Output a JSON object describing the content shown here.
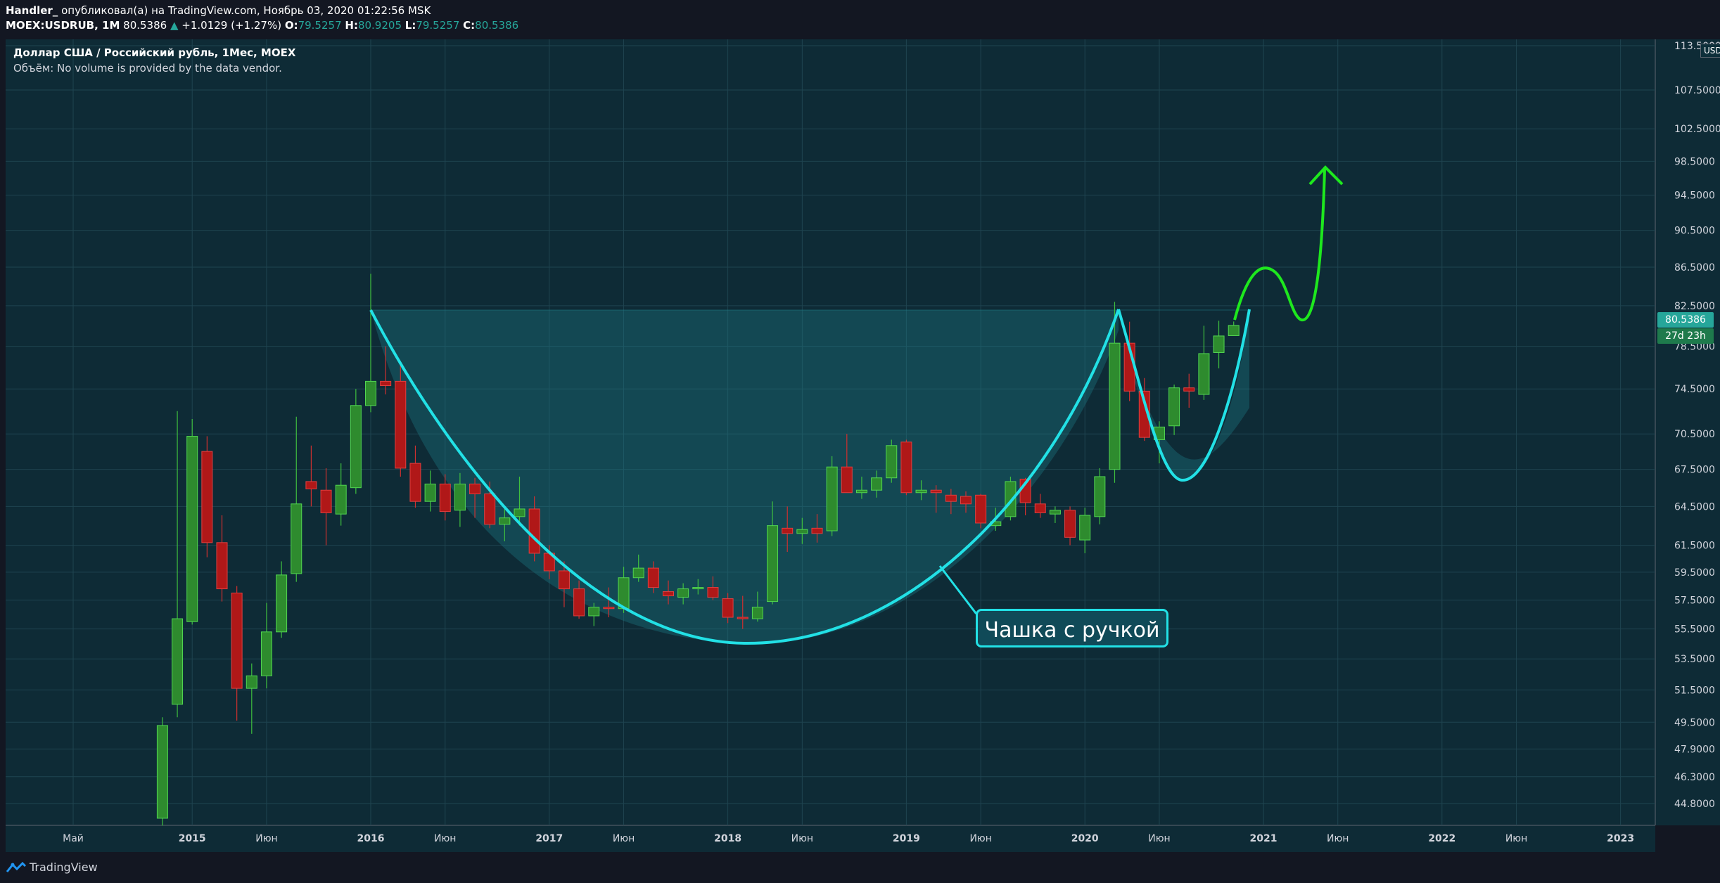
{
  "header": {
    "author": "Handler_",
    "published_text": "опубликовал(а) на TradingView.com, Ноябрь 03, 2020 01:22:56 MSK",
    "symbol": "MOEX:USDRUB, 1M",
    "last": "80.5386",
    "change": "+1.0129 (+1.27%)",
    "open_label": "O:",
    "open": "79.5257",
    "high_label": "H:",
    "high": "80.9205",
    "low_label": "L:",
    "low": "79.5257",
    "close_label": "C:",
    "close": "80.5386"
  },
  "legend": {
    "title": "Доллар США / Российский рубль, 1Мес, MOEX",
    "volume_note": "Объём: No volume is provided by the data vendor."
  },
  "price_axis": {
    "currency": "USD",
    "current_price": "80.5386",
    "countdown": "27d 23h"
  },
  "annotation": "Чашка с ручкой",
  "footer": {
    "brand": "TradingView"
  },
  "colors": {
    "background": "#0e2b36",
    "up_candle": "#2e8b2e",
    "down_candle": "#b01818",
    "cup_line": "#22e1e6",
    "projection": "#1ee81e"
  },
  "chart_data": {
    "type": "candlestick",
    "title": "Доллар США / Российский рубль, 1Мес, MOEX",
    "y_scale": "log",
    "ylim": [
      43.6,
      113.5
    ],
    "y_ticks": [
      "113.5000",
      "107.5000",
      "102.5000",
      "98.5000",
      "94.5000",
      "90.5000",
      "86.5000",
      "82.5000",
      "78.5000",
      "74.5000",
      "70.5000",
      "67.5000",
      "64.5000",
      "61.5000",
      "59.5000",
      "57.5000",
      "55.5000",
      "53.5000",
      "51.5000",
      "49.5000",
      "47.9000",
      "46.3000",
      "44.8000"
    ],
    "x_ticks": [
      {
        "label": "Май",
        "date": "2014-05"
      },
      {
        "label": "2015",
        "date": "2015-01"
      },
      {
        "label": "Июн",
        "date": "2015-06"
      },
      {
        "label": "2016",
        "date": "2016-01"
      },
      {
        "label": "Июн",
        "date": "2016-06"
      },
      {
        "label": "2017",
        "date": "2017-01"
      },
      {
        "label": "Июн",
        "date": "2017-06"
      },
      {
        "label": "2018",
        "date": "2018-01"
      },
      {
        "label": "Июн",
        "date": "2018-06"
      },
      {
        "label": "2019",
        "date": "2019-01"
      },
      {
        "label": "Июн",
        "date": "2019-06"
      },
      {
        "label": "2020",
        "date": "2020-01"
      },
      {
        "label": "Июн",
        "date": "2020-06"
      },
      {
        "label": "2021",
        "date": "2021-01"
      },
      {
        "label": "Июн",
        "date": "2021-06"
      },
      {
        "label": "2022",
        "date": "2022-01"
      },
      {
        "label": "Июн",
        "date": "2022-06"
      },
      {
        "label": "2023",
        "date": "2023-01"
      }
    ],
    "candles": [
      {
        "date": "2014-11",
        "o": 44.0,
        "h": 49.8,
        "l": 43.6,
        "c": 49.3
      },
      {
        "date": "2014-12",
        "o": 50.6,
        "h": 72.5,
        "l": 49.8,
        "c": 56.2
      },
      {
        "date": "2015-01",
        "o": 56.0,
        "h": 71.8,
        "l": 55.8,
        "c": 70.3
      },
      {
        "date": "2015-02",
        "o": 69.0,
        "h": 70.3,
        "l": 60.6,
        "c": 61.7
      },
      {
        "date": "2015-03",
        "o": 61.7,
        "h": 63.8,
        "l": 57.4,
        "c": 58.3
      },
      {
        "date": "2015-04",
        "o": 58.0,
        "h": 58.5,
        "l": 49.6,
        "c": 51.6
      },
      {
        "date": "2015-05",
        "o": 51.6,
        "h": 53.2,
        "l": 48.8,
        "c": 52.4
      },
      {
        "date": "2015-06",
        "o": 52.4,
        "h": 57.3,
        "l": 51.6,
        "c": 55.3
      },
      {
        "date": "2015-07",
        "o": 55.3,
        "h": 60.3,
        "l": 54.9,
        "c": 59.3
      },
      {
        "date": "2015-08",
        "o": 59.4,
        "h": 72.0,
        "l": 58.8,
        "c": 64.7
      },
      {
        "date": "2015-09",
        "o": 66.5,
        "h": 69.5,
        "l": 64.5,
        "c": 65.9
      },
      {
        "date": "2015-10",
        "o": 65.8,
        "h": 67.6,
        "l": 61.5,
        "c": 64.0
      },
      {
        "date": "2015-11",
        "o": 63.9,
        "h": 68.0,
        "l": 63.0,
        "c": 66.2
      },
      {
        "date": "2015-12",
        "o": 66.0,
        "h": 74.5,
        "l": 65.5,
        "c": 73.0
      },
      {
        "date": "2016-01",
        "o": 73.0,
        "h": 85.8,
        "l": 72.4,
        "c": 75.2
      },
      {
        "date": "2016-02",
        "o": 75.2,
        "h": 78.5,
        "l": 74.0,
        "c": 74.8
      },
      {
        "date": "2016-03",
        "o": 75.2,
        "h": 77.0,
        "l": 66.9,
        "c": 67.6
      },
      {
        "date": "2016-04",
        "o": 68.0,
        "h": 69.5,
        "l": 64.4,
        "c": 64.9
      },
      {
        "date": "2016-05",
        "o": 64.9,
        "h": 67.4,
        "l": 64.1,
        "c": 66.3
      },
      {
        "date": "2016-06",
        "o": 66.3,
        "h": 67.1,
        "l": 63.4,
        "c": 64.1
      },
      {
        "date": "2016-07",
        "o": 64.2,
        "h": 67.2,
        "l": 62.9,
        "c": 66.3
      },
      {
        "date": "2016-08",
        "o": 66.3,
        "h": 66.8,
        "l": 63.6,
        "c": 65.5
      },
      {
        "date": "2016-09",
        "o": 65.5,
        "h": 66.5,
        "l": 62.8,
        "c": 63.1
      },
      {
        "date": "2016-10",
        "o": 63.1,
        "h": 64.3,
        "l": 61.8,
        "c": 63.6
      },
      {
        "date": "2016-11",
        "o": 63.7,
        "h": 66.9,
        "l": 63.0,
        "c": 64.3
      },
      {
        "date": "2016-12",
        "o": 64.3,
        "h": 65.3,
        "l": 60.3,
        "c": 60.9
      },
      {
        "date": "2017-01",
        "o": 60.9,
        "h": 61.5,
        "l": 59.0,
        "c": 59.6
      },
      {
        "date": "2017-02",
        "o": 59.6,
        "h": 60.3,
        "l": 57.0,
        "c": 58.3
      },
      {
        "date": "2017-03",
        "o": 58.3,
        "h": 58.9,
        "l": 56.2,
        "c": 56.4
      },
      {
        "date": "2017-04",
        "o": 56.4,
        "h": 57.3,
        "l": 55.7,
        "c": 57.0
      },
      {
        "date": "2017-05",
        "o": 57.0,
        "h": 58.4,
        "l": 56.3,
        "c": 56.9
      },
      {
        "date": "2017-06",
        "o": 56.9,
        "h": 59.9,
        "l": 56.6,
        "c": 59.1
      },
      {
        "date": "2017-07",
        "o": 59.1,
        "h": 60.8,
        "l": 58.8,
        "c": 59.8
      },
      {
        "date": "2017-08",
        "o": 59.8,
        "h": 60.3,
        "l": 58.0,
        "c": 58.4
      },
      {
        "date": "2017-09",
        "o": 58.1,
        "h": 58.9,
        "l": 57.2,
        "c": 57.8
      },
      {
        "date": "2017-10",
        "o": 57.7,
        "h": 58.7,
        "l": 57.2,
        "c": 58.3
      },
      {
        "date": "2017-11",
        "o": 58.3,
        "h": 59.0,
        "l": 57.9,
        "c": 58.4
      },
      {
        "date": "2017-12",
        "o": 58.4,
        "h": 59.2,
        "l": 57.5,
        "c": 57.7
      },
      {
        "date": "2018-01",
        "o": 57.6,
        "h": 58.0,
        "l": 55.9,
        "c": 56.3
      },
      {
        "date": "2018-02",
        "o": 56.3,
        "h": 57.8,
        "l": 55.5,
        "c": 56.2
      },
      {
        "date": "2018-03",
        "o": 56.2,
        "h": 58.1,
        "l": 56.0,
        "c": 57.0
      },
      {
        "date": "2018-04",
        "o": 57.4,
        "h": 64.9,
        "l": 57.2,
        "c": 63.0
      },
      {
        "date": "2018-05",
        "o": 62.8,
        "h": 64.5,
        "l": 61.0,
        "c": 62.4
      },
      {
        "date": "2018-06",
        "o": 62.4,
        "h": 63.6,
        "l": 61.6,
        "c": 62.7
      },
      {
        "date": "2018-07",
        "o": 62.8,
        "h": 63.9,
        "l": 61.7,
        "c": 62.4
      },
      {
        "date": "2018-08",
        "o": 62.6,
        "h": 68.6,
        "l": 62.2,
        "c": 67.7
      },
      {
        "date": "2018-09",
        "o": 67.7,
        "h": 70.5,
        "l": 65.7,
        "c": 65.6
      },
      {
        "date": "2018-10",
        "o": 65.6,
        "h": 66.9,
        "l": 65.1,
        "c": 65.8
      },
      {
        "date": "2018-11",
        "o": 65.8,
        "h": 67.4,
        "l": 65.2,
        "c": 66.8
      },
      {
        "date": "2018-12",
        "o": 66.8,
        "h": 70.0,
        "l": 66.4,
        "c": 69.5
      },
      {
        "date": "2019-01",
        "o": 69.8,
        "h": 70.0,
        "l": 65.4,
        "c": 65.6
      },
      {
        "date": "2019-02",
        "o": 65.6,
        "h": 66.6,
        "l": 65.0,
        "c": 65.8
      },
      {
        "date": "2019-03",
        "o": 65.8,
        "h": 66.2,
        "l": 64.0,
        "c": 65.6
      },
      {
        "date": "2019-04",
        "o": 65.4,
        "h": 65.9,
        "l": 63.9,
        "c": 64.9
      },
      {
        "date": "2019-05",
        "o": 65.3,
        "h": 65.7,
        "l": 64.0,
        "c": 64.7
      },
      {
        "date": "2019-06",
        "o": 65.4,
        "h": 65.5,
        "l": 62.8,
        "c": 63.2
      },
      {
        "date": "2019-07",
        "o": 63.0,
        "h": 64.4,
        "l": 62.6,
        "c": 63.3
      },
      {
        "date": "2019-08",
        "o": 63.7,
        "h": 66.9,
        "l": 63.4,
        "c": 66.5
      },
      {
        "date": "2019-09",
        "o": 66.7,
        "h": 66.8,
        "l": 63.8,
        "c": 64.8
      },
      {
        "date": "2019-10",
        "o": 64.7,
        "h": 65.5,
        "l": 63.6,
        "c": 64.0
      },
      {
        "date": "2019-11",
        "o": 63.9,
        "h": 64.5,
        "l": 63.2,
        "c": 64.2
      },
      {
        "date": "2019-12",
        "o": 64.2,
        "h": 64.5,
        "l": 61.5,
        "c": 62.1
      },
      {
        "date": "2020-01",
        "o": 61.9,
        "h": 64.4,
        "l": 60.9,
        "c": 63.8
      },
      {
        "date": "2020-02",
        "o": 63.7,
        "h": 67.6,
        "l": 63.1,
        "c": 66.9
      },
      {
        "date": "2020-03",
        "o": 67.5,
        "h": 82.9,
        "l": 66.4,
        "c": 78.8
      },
      {
        "date": "2020-04",
        "o": 78.8,
        "h": 80.9,
        "l": 73.4,
        "c": 74.3
      },
      {
        "date": "2020-05",
        "o": 74.3,
        "h": 75.5,
        "l": 69.9,
        "c": 70.2
      },
      {
        "date": "2020-06",
        "o": 70.0,
        "h": 71.6,
        "l": 68.0,
        "c": 71.1
      },
      {
        "date": "2020-07",
        "o": 71.2,
        "h": 74.9,
        "l": 70.4,
        "c": 74.6
      },
      {
        "date": "2020-08",
        "o": 74.6,
        "h": 75.9,
        "l": 72.8,
        "c": 74.3
      },
      {
        "date": "2020-09",
        "o": 74.0,
        "h": 80.5,
        "l": 73.5,
        "c": 77.8
      },
      {
        "date": "2020-10",
        "o": 77.9,
        "h": 81.0,
        "l": 76.4,
        "c": 79.5
      },
      {
        "date": "2020-11",
        "o": 79.5257,
        "h": 80.9205,
        "l": 79.5257,
        "c": 80.5386
      }
    ]
  }
}
